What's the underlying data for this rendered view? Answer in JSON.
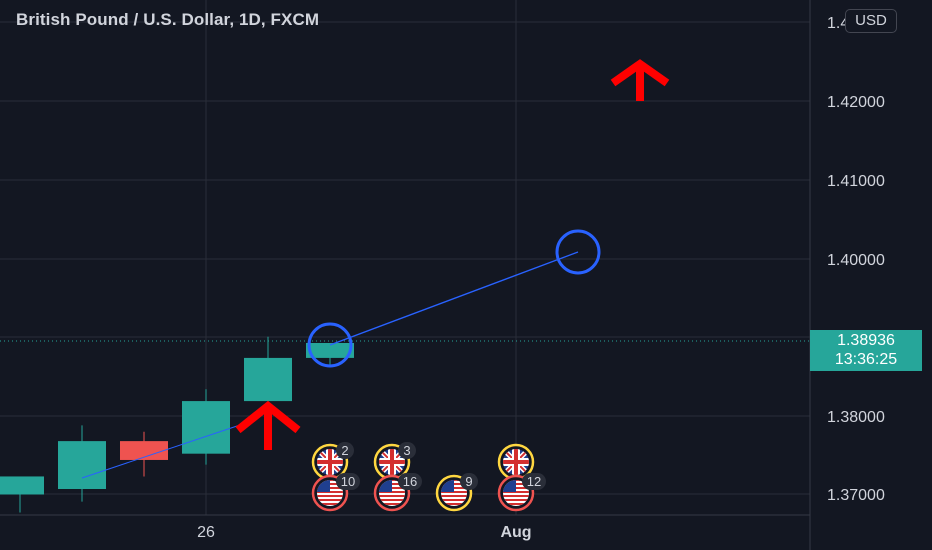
{
  "header": {
    "title": "British Pound / U.S. Dollar, 1D, FXCM"
  },
  "currency_button": "USD",
  "price_axis": {
    "labels": [
      "1.43000",
      "1.42000",
      "1.41000",
      "1.40000",
      "1.38000",
      "1.37000"
    ],
    "last_price": "1.38936",
    "countdown": "13:36:25"
  },
  "time_axis": {
    "labels": [
      "26",
      "Aug"
    ]
  },
  "colors": {
    "background": "#131722",
    "bull": "#26a69a",
    "bear": "#ef5350",
    "drawing_line": "#2962ff",
    "arrow": "#ff0000",
    "badge_uk": "#ffd740",
    "badge_us": "#ef5350"
  },
  "chart_data": {
    "type": "candlestick",
    "symbol": "GBPUSD",
    "timeframe": "1D",
    "x_labels": [
      "26",
      "Aug"
    ],
    "ylim": [
      1.366,
      1.436
    ],
    "candles": [
      {
        "open": 1.37,
        "high": 1.3723,
        "low": 1.3677,
        "close": 1.3723
      },
      {
        "open": 1.3707,
        "high": 1.3788,
        "low": 1.3691,
        "close": 1.3768
      },
      {
        "open": 1.3768,
        "high": 1.378,
        "low": 1.3723,
        "close": 1.3744
      },
      {
        "open": 1.3752,
        "high": 1.3834,
        "low": 1.3738,
        "close": 1.3819
      },
      {
        "open": 1.3819,
        "high": 1.3901,
        "low": 1.3818,
        "close": 1.3874
      },
      {
        "open": 1.3874,
        "high": 1.3893,
        "low": 1.3864,
        "close": 1.3893
      }
    ],
    "events": [
      {
        "flag": "uk",
        "count": "2"
      },
      {
        "flag": "uk",
        "count": "3"
      },
      {
        "flag": "uk",
        "count": ""
      },
      {
        "flag": "us",
        "count": "10"
      },
      {
        "flag": "us",
        "count": "16"
      },
      {
        "flag": "us",
        "count": "9"
      },
      {
        "flag": "us",
        "count": "12"
      }
    ]
  }
}
